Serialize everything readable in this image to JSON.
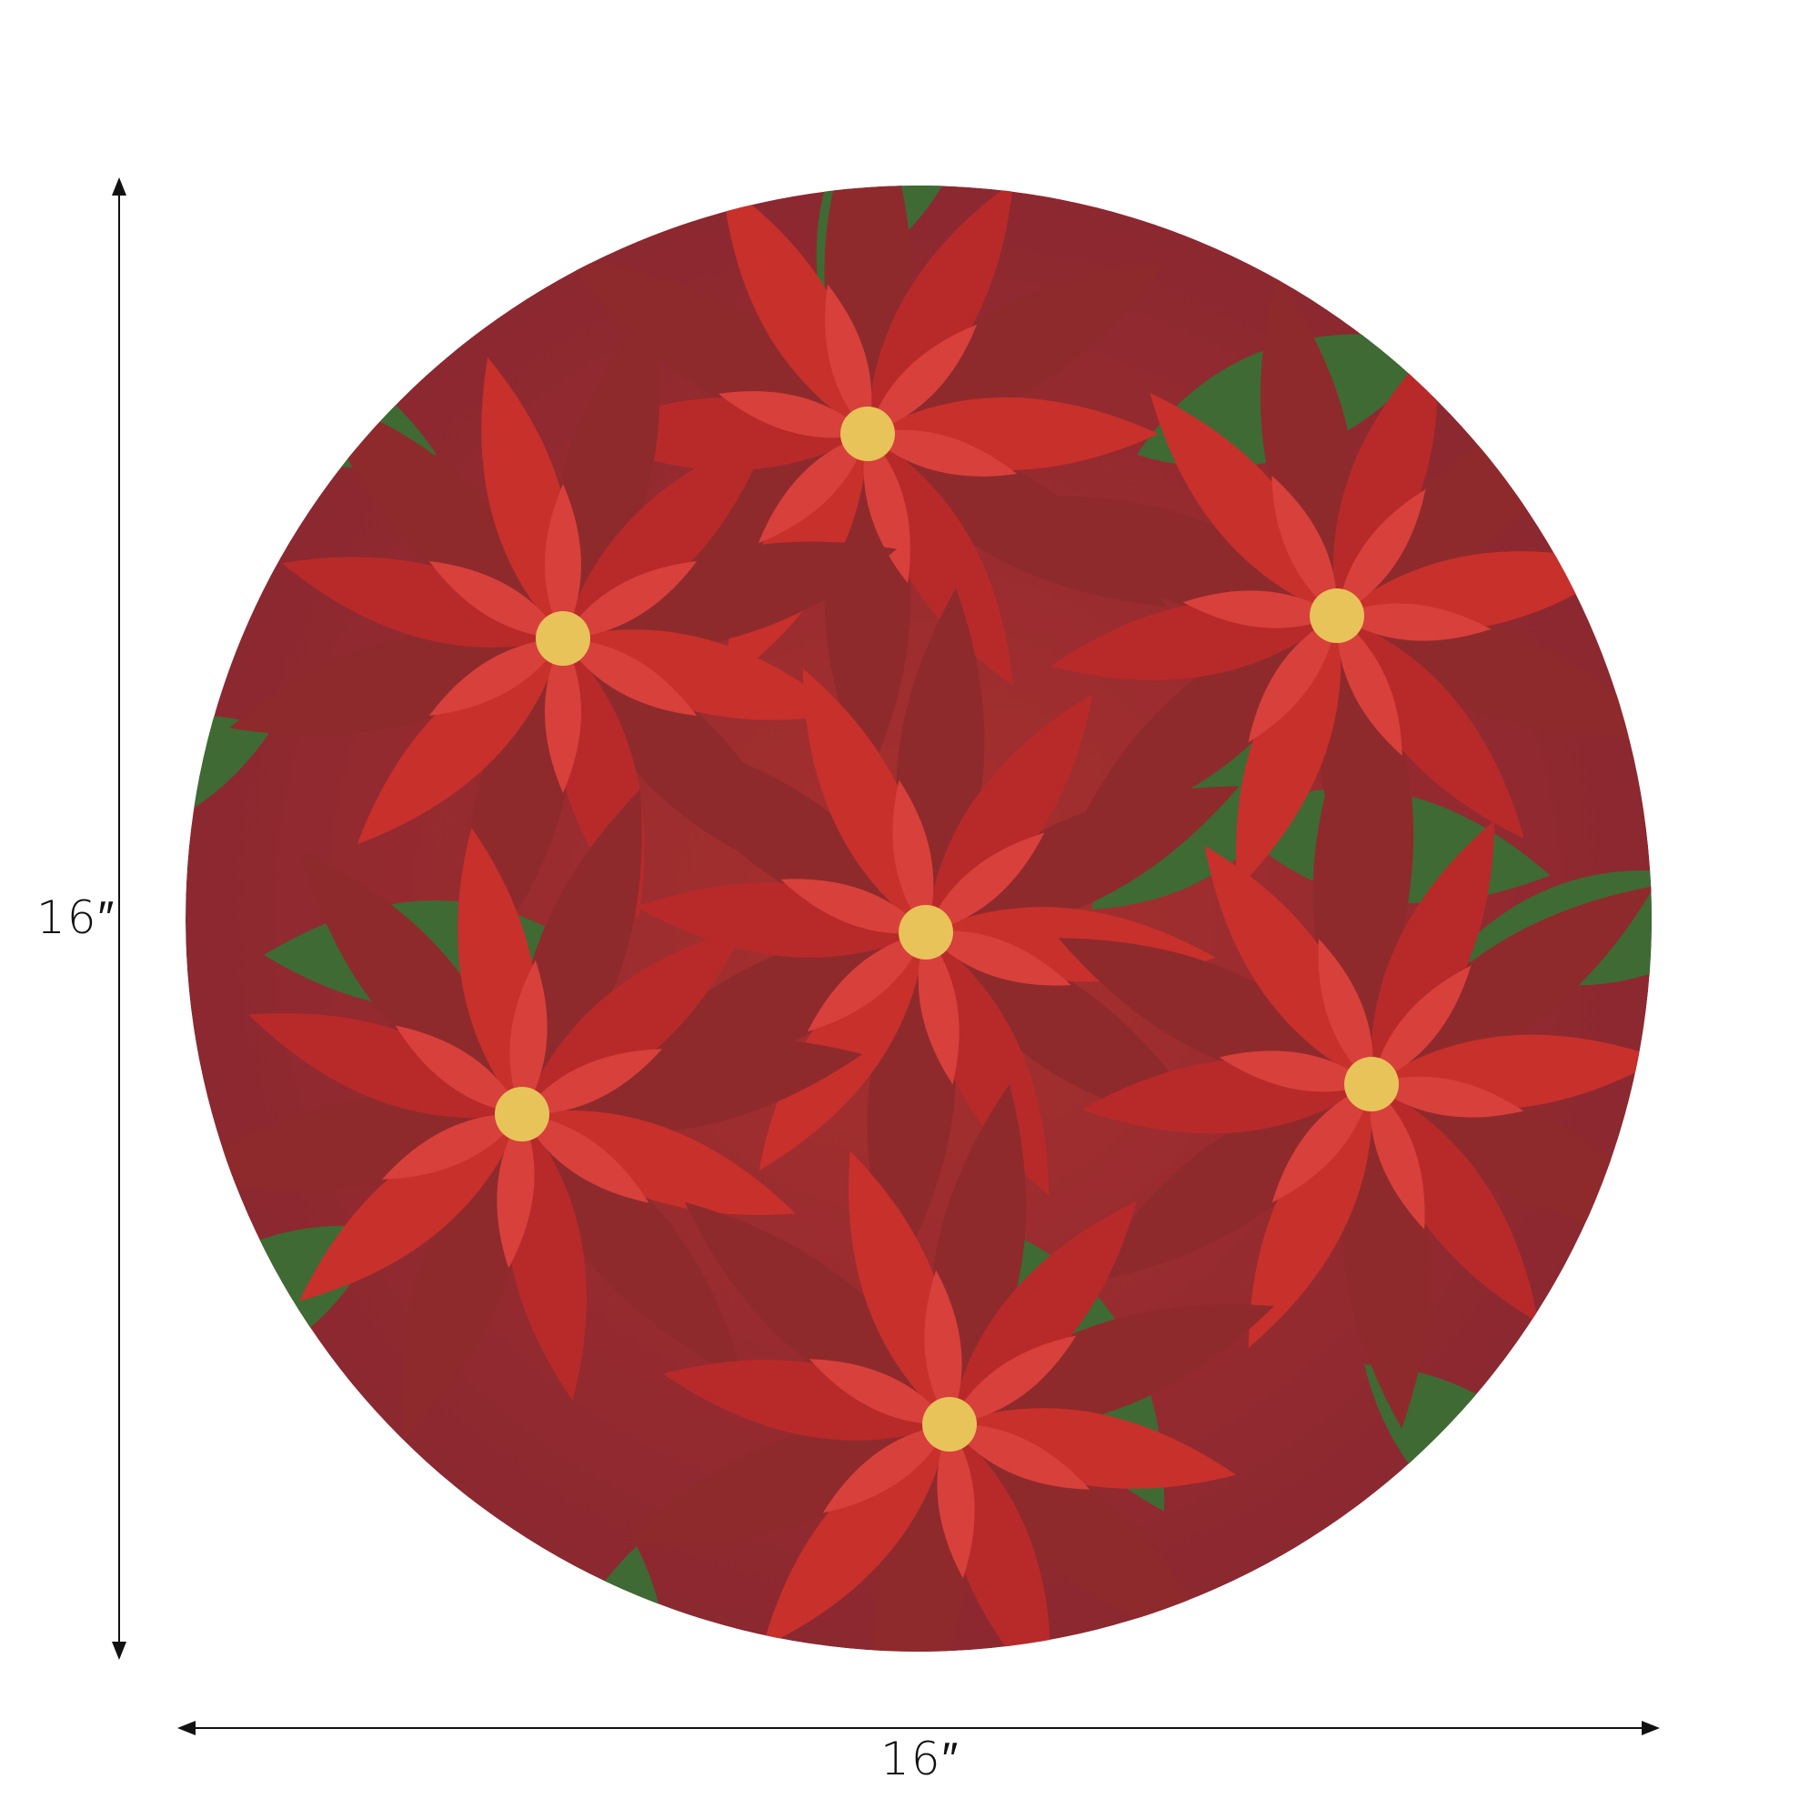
{
  "product": {
    "description_shape": "round placemat",
    "pattern": "poinsettia",
    "colors": {
      "red": "#c8302c",
      "dark_red": "#8f2a2c",
      "green": "#3f6a34",
      "center": "#e8c35a"
    }
  },
  "dimensions": {
    "height_label": "16″",
    "width_label": "16″"
  }
}
